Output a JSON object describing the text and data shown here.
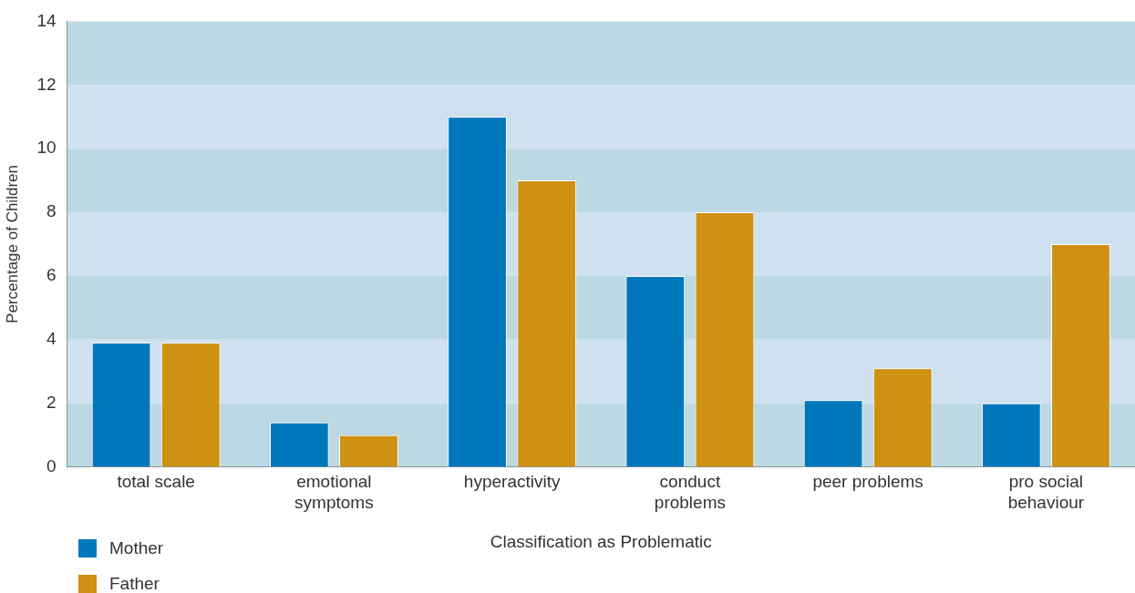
{
  "chart_data": {
    "type": "bar",
    "xlabel": "Classification as Problematic",
    "ylabel": "Percentage of Children",
    "categories": [
      "total scale",
      "emotional\nsymptoms",
      "hyperactivity",
      "conduct\nproblems",
      "peer problems",
      "pro social\nbehaviour"
    ],
    "series": [
      {
        "name": "Mother",
        "color": "#0077bb",
        "values": [
          3.9,
          1.4,
          11.0,
          6.0,
          2.1,
          2.0
        ]
      },
      {
        "name": "Father",
        "color": "#cf9112",
        "values": [
          3.9,
          1.0,
          9.0,
          8.0,
          3.1,
          7.0
        ]
      }
    ],
    "ylim": [
      0,
      14
    ],
    "yticks": [
      0,
      2,
      4,
      6,
      8,
      10,
      12,
      14
    ],
    "grid": false,
    "legend": "bottom left"
  }
}
